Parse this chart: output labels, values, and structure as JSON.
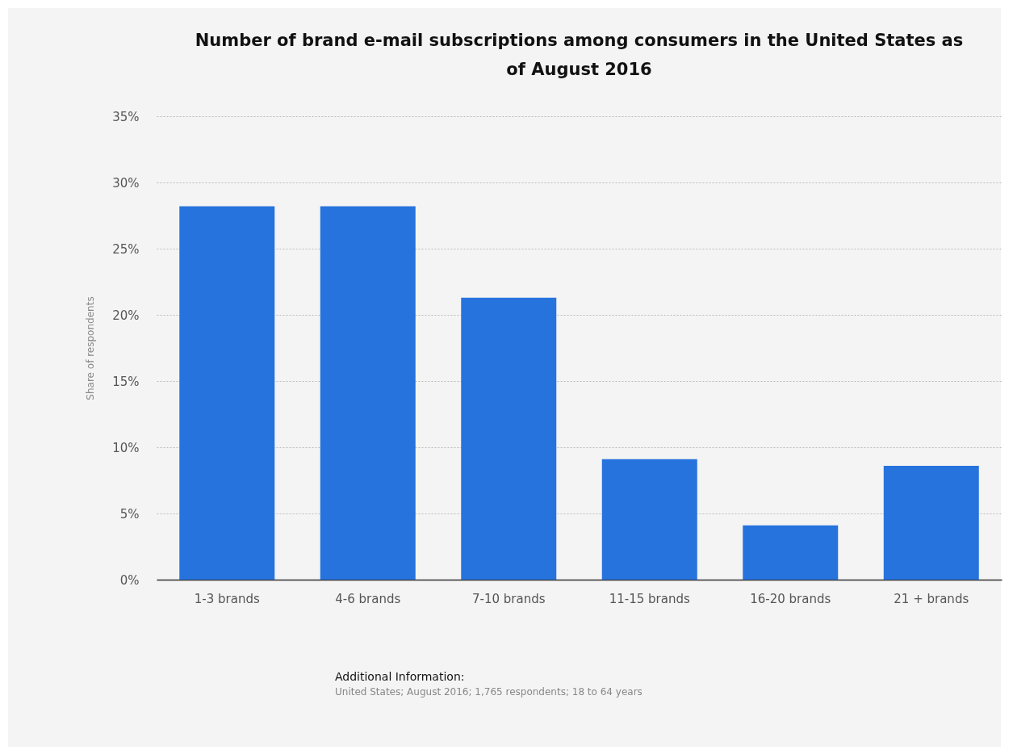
{
  "chart_data": {
    "type": "bar",
    "title": "Number of brand e-mail subscriptions among consumers in the United States as of August 2016",
    "ylabel": "Share of respondents",
    "categories": [
      "1-3 brands",
      "4-6 brands",
      "7-10 brands",
      "11-15 brands",
      "16-20 brands",
      "21 + brands"
    ],
    "values": [
      28.2,
      28.2,
      21.3,
      9.1,
      4.1,
      8.6
    ],
    "color": "#2673dd",
    "ylim": [
      0,
      35
    ],
    "yticks": [
      {
        "value": 0,
        "label": "0%"
      },
      {
        "value": 5,
        "label": "5%"
      },
      {
        "value": 10,
        "label": "10%"
      },
      {
        "value": 15,
        "label": "15%"
      },
      {
        "value": 20,
        "label": "20%"
      },
      {
        "value": 25,
        "label": "25%"
      },
      {
        "value": 30,
        "label": "30%"
      },
      {
        "value": 35,
        "label": "35%"
      }
    ],
    "grid": "y",
    "annotations": [
      "Additional Information:",
      "United States; August 2016; 1,765 respondents; 18 to 64 years"
    ]
  }
}
